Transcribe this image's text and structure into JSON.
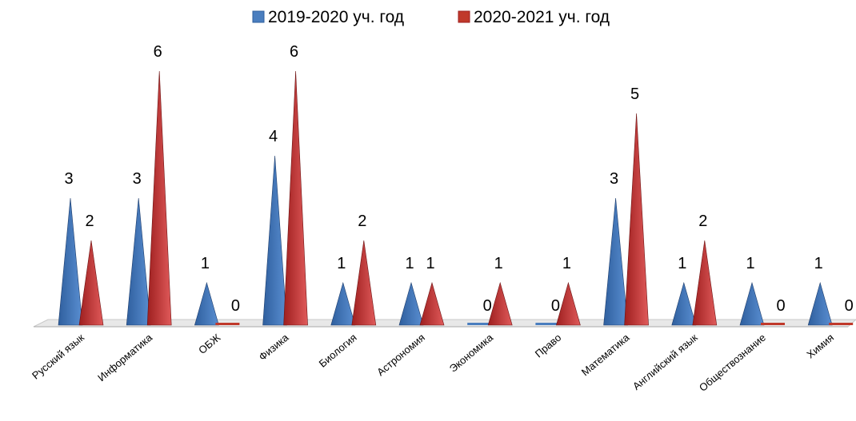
{
  "chart_data": {
    "type": "bar",
    "style": "3d-cone",
    "categories": [
      "Русский язык",
      "Информатика",
      "ОБЖ",
      "Физика",
      "Биология",
      "Астрономия",
      "Экономика",
      "Право",
      "Математика",
      "Английский язык",
      "Обществознание",
      "Химия"
    ],
    "series": [
      {
        "name": "2019-2020 уч. год",
        "color": "#4a7ebf",
        "values": [
          3,
          3,
          1,
          4,
          1,
          1,
          0,
          0,
          3,
          1,
          1,
          1
        ]
      },
      {
        "name": "2020-2021 уч. год",
        "color": "#c0392b",
        "values": [
          2,
          6,
          0,
          6,
          2,
          1,
          1,
          1,
          5,
          2,
          0,
          0
        ]
      }
    ],
    "ylim": [
      0,
      6
    ],
    "grid": false,
    "legend": "top-center"
  }
}
